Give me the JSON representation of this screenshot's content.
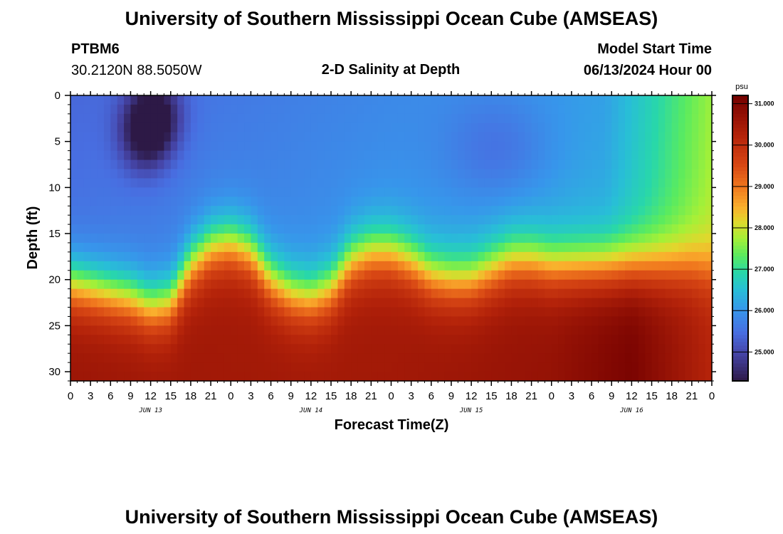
{
  "header": {
    "title": "University of Southern Mississippi Ocean Cube (AMSEAS)",
    "station_id": "PTBM6",
    "coordinates": "30.2120N  88.5050W",
    "plot_title": "2-D Salinity at Depth",
    "model_start_label": "Model Start Time",
    "model_start_value": "06/13/2024 Hour 00"
  },
  "footer": {
    "title": "University of Southern Mississippi Ocean Cube (AMSEAS)"
  },
  "chart_data": {
    "type": "heatmap",
    "title": "2-D Salinity at Depth",
    "xlabel": "Forecast Time(Z)",
    "ylabel": "Depth (ft)",
    "x_range_hours": [
      0,
      96
    ],
    "ylim": [
      0,
      31
    ],
    "y_inverted": true,
    "x_tick_labels": [
      "0",
      "3",
      "6",
      "9",
      "12",
      "15",
      "18",
      "21",
      "0",
      "3",
      "6",
      "9",
      "12",
      "15",
      "18",
      "21",
      "0",
      "3",
      "6",
      "9",
      "12",
      "15",
      "18",
      "21",
      "0",
      "3",
      "6",
      "9",
      "12",
      "15",
      "18",
      "21",
      "0"
    ],
    "day_labels": [
      {
        "label": "JUN 13",
        "hour": 12
      },
      {
        "label": "JUN 14",
        "hour": 36
      },
      {
        "label": "JUN 15",
        "hour": 60
      },
      {
        "label": "JUN 16",
        "hour": 84
      }
    ],
    "y_tick_labels": [
      "0",
      "5",
      "10",
      "15",
      "20",
      "25",
      "30"
    ],
    "y_tick_values": [
      0,
      5,
      10,
      15,
      20,
      25,
      30
    ],
    "colorbar": {
      "unit": "psu",
      "min": 24.3,
      "max": 31.2,
      "tick_values": [
        25,
        26,
        27,
        28,
        29,
        30,
        31
      ],
      "tick_labels": [
        "25.000",
        "26.000",
        "27.000",
        "28.000",
        "29.000",
        "30.000",
        "31.000"
      ]
    },
    "halocline_depth_profile": {
      "hours": [
        0,
        3,
        6,
        9,
        12,
        15,
        18,
        21,
        24,
        27,
        30,
        33,
        36,
        39,
        42,
        45,
        48,
        51,
        54,
        57,
        60,
        63,
        66,
        69,
        72,
        75,
        78,
        81,
        84,
        87,
        90,
        93,
        96
      ],
      "depth_ft": [
        20.5,
        21.0,
        21.5,
        22.0,
        23.0,
        22.5,
        18.5,
        16.5,
        16.0,
        17.0,
        20.0,
        21.5,
        22.0,
        21.0,
        18.0,
        17.0,
        17.0,
        18.0,
        19.5,
        20.0,
        20.0,
        19.0,
        18.0,
        18.0,
        18.5,
        18.5,
        18.5,
        18.5,
        18.5,
        18.5,
        18.5,
        18.5,
        19.0
      ]
    },
    "bottom_salinity_psu": {
      "hours": [
        0,
        24,
        48,
        72,
        84,
        96
      ],
      "values": [
        30.6,
        30.5,
        30.5,
        30.7,
        31.1,
        30.2
      ]
    },
    "surface_low_salinity_cores": [
      {
        "hour": 11,
        "depth_ft": 4,
        "salinity_psu": 24.3
      },
      {
        "hour": 13,
        "depth_ft": 2,
        "salinity_psu": 24.5
      }
    ]
  }
}
